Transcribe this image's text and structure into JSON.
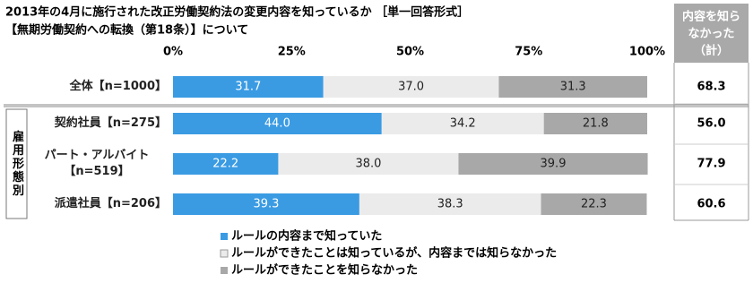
{
  "chart_data": {
    "type": "stacked-bar-horizontal",
    "title": "2013年の4月に施行された改正労働契約法の変更内容を知っているか ［単一回答形式］",
    "subtitle": "【無期労働契約への転換（第18条）】について",
    "group_label": "雇用形態別",
    "categories": [
      "全体【n=1000】",
      "契約社員【n=275】",
      "パート・アルバイト【n=519】",
      "派遣社員【n=206】"
    ],
    "xlim": [
      0,
      100
    ],
    "xticks": [
      {
        "value": 0,
        "label": "0%"
      },
      {
        "value": 25,
        "label": "25%"
      },
      {
        "value": 50,
        "label": "50%"
      },
      {
        "value": 75,
        "label": "75%"
      },
      {
        "value": 100,
        "label": "100%"
      }
    ],
    "series": [
      {
        "name": "ルールの内容まで知っていた",
        "color": "#3a9be3",
        "values": [
          31.7,
          44.0,
          22.2,
          39.3
        ],
        "value_labels": [
          "31.7",
          "44.0",
          "22.2",
          "39.3"
        ]
      },
      {
        "name": "ルールができたことは知っているが、内容までは知らなかった",
        "color": "#ebebeb",
        "values": [
          37.0,
          34.2,
          38.0,
          38.3
        ],
        "value_labels": [
          "37.0",
          "34.2",
          "38.0",
          "38.3"
        ]
      },
      {
        "name": "ルールができたことを知らなかった",
        "color": "#a8a8a8",
        "values": [
          31.3,
          21.8,
          39.9,
          22.3
        ],
        "value_labels": [
          "31.3",
          "21.8",
          "39.9",
          "22.3"
        ]
      }
    ],
    "summary": {
      "header": [
        "内容を知ら",
        "なかった",
        "（計）"
      ],
      "values": [
        68.3,
        56.0,
        77.9,
        60.6
      ],
      "value_labels": [
        "68.3",
        "56.0",
        "77.9",
        "60.6"
      ]
    }
  }
}
